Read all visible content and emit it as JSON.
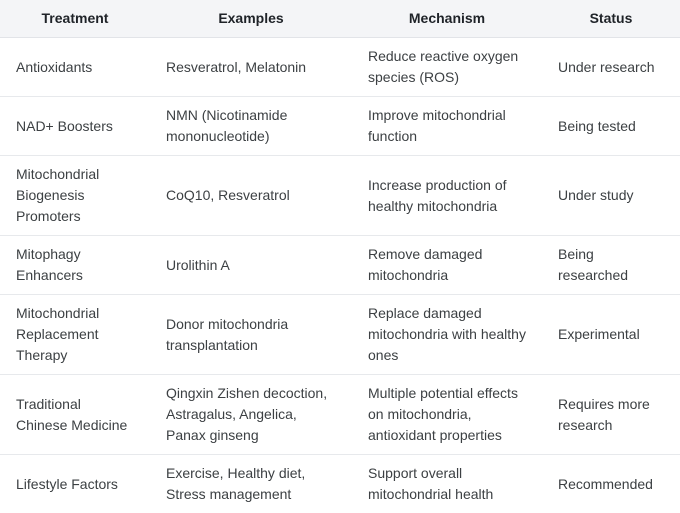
{
  "table": {
    "columns": [
      {
        "key": "treatment",
        "label": "Treatment"
      },
      {
        "key": "examples",
        "label": "Examples"
      },
      {
        "key": "mechanism",
        "label": "Mechanism"
      },
      {
        "key": "status",
        "label": "Status"
      }
    ],
    "rows": [
      {
        "treatment": "Antioxidants",
        "examples": "Resveratrol, Melatonin",
        "mechanism": "Reduce reactive oxygen species (ROS)",
        "status": "Under research"
      },
      {
        "treatment": "NAD+ Boosters",
        "examples": "NMN (Nicotinamide mononucleotide)",
        "mechanism": "Improve mitochondrial function",
        "status": "Being tested"
      },
      {
        "treatment": "Mitochondrial Biogenesis Promoters",
        "examples": "CoQ10, Resveratrol",
        "mechanism": "Increase production of healthy mitochondria",
        "status": "Under study"
      },
      {
        "treatment": "Mitophagy Enhancers",
        "examples": "Urolithin A",
        "mechanism": "Remove damaged mitochondria",
        "status": "Being researched"
      },
      {
        "treatment": "Mitochondrial Replacement Therapy",
        "examples": "Donor mitochondria transplantation",
        "mechanism": "Replace damaged mitochondria with healthy ones",
        "status": "Experimental"
      },
      {
        "treatment": "Traditional Chinese Medicine",
        "examples": "Qingxin Zishen decoction, Astragalus, Angelica, Panax ginseng",
        "mechanism": "Multiple potential effects on mitochondria, antioxidant properties",
        "status": "Requires more research"
      },
      {
        "treatment": "Lifestyle Factors",
        "examples": "Exercise, Healthy diet, Stress management",
        "mechanism": "Support overall mitochondrial health",
        "status": "Recommended"
      }
    ]
  },
  "colors": {
    "header_bg": "#f4f5f7",
    "row_bg": "#ffffff",
    "separator": "#e7e9ec",
    "header_text": "#1f2328",
    "body_text": "#3c4043"
  }
}
